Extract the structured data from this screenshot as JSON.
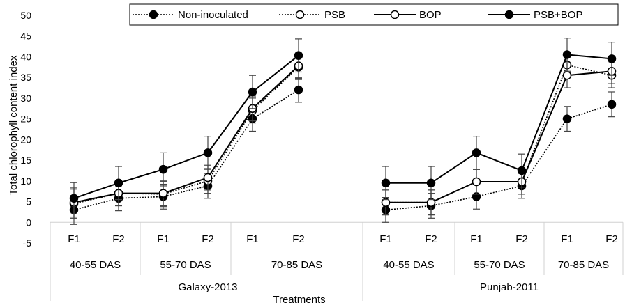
{
  "chart_data": {
    "type": "line",
    "ylabel": "Total chlorophyll content index",
    "xlabel": "Treatments",
    "ylim": [
      -5,
      50
    ],
    "yticks": [
      -5,
      0,
      5,
      10,
      15,
      20,
      25,
      30,
      35,
      40,
      45,
      50
    ],
    "grid": false,
    "legend_position": "top-right",
    "panels": [
      {
        "name": "Galaxy-2013",
        "groups": [
          "40-55 DAS",
          "55-70 DAS",
          "70-85 DAS"
        ],
        "categories": [
          "F1",
          "F2",
          "F1",
          "F2",
          "F1",
          "F2"
        ],
        "series": [
          {
            "name": "Non-inoculated",
            "values": [
              3.0,
              5.8,
              6.2,
              8.8,
              25.0,
              32.0
            ],
            "err": [
              3.5,
              3.0,
              3.0,
              3.0,
              3.0,
              3.0
            ]
          },
          {
            "name": "PSB",
            "values": [
              4.5,
              7.0,
              6.8,
              10.0,
              27.0,
              37.5
            ],
            "err": [
              3.5,
              3.0,
              3.0,
              3.0,
              3.0,
              3.0
            ]
          },
          {
            "name": "BOP",
            "values": [
              4.8,
              7.0,
              7.0,
              10.8,
              27.5,
              37.8
            ],
            "err": [
              3.5,
              3.0,
              3.0,
              3.0,
              3.0,
              3.0
            ]
          },
          {
            "name": "PSB+BOP",
            "values": [
              5.8,
              9.5,
              12.8,
              16.8,
              31.5,
              40.3
            ],
            "err": [
              3.8,
              4.0,
              4.0,
              4.0,
              4.0,
              4.0
            ]
          }
        ]
      },
      {
        "name": "Punjab-2011",
        "groups": [
          "40-55 DAS",
          "55-70 DAS",
          "70-85 DAS"
        ],
        "categories": [
          "F1",
          "F2",
          "F1",
          "F2",
          "F1",
          "F2"
        ],
        "series": [
          {
            "name": "Non-inoculated",
            "values": [
              3.0,
              4.0,
              6.2,
              8.8,
              25.0,
              28.5
            ],
            "err": [
              3.0,
              3.0,
              3.0,
              3.0,
              3.0,
              3.0
            ]
          },
          {
            "name": "PSB",
            "values": [
              4.8,
              4.8,
              9.8,
              9.8,
              38.0,
              35.5
            ],
            "err": [
              3.0,
              3.0,
              3.0,
              3.0,
              3.0,
              3.0
            ]
          },
          {
            "name": "BOP",
            "values": [
              4.8,
              4.8,
              9.8,
              9.8,
              35.5,
              36.5
            ],
            "err": [
              3.0,
              3.0,
              3.0,
              3.0,
              3.0,
              3.0
            ]
          },
          {
            "name": "PSB+BOP",
            "values": [
              9.5,
              9.5,
              16.8,
              12.5,
              40.5,
              39.5
            ],
            "err": [
              4.0,
              4.0,
              4.0,
              4.0,
              4.0,
              4.0
            ]
          }
        ]
      }
    ],
    "legend": [
      "Non-inoculated",
      "PSB",
      "BOP",
      "PSB+BOP"
    ],
    "series_styles": [
      {
        "name": "Non-inoculated",
        "line": "dotted",
        "marker": "filled"
      },
      {
        "name": "PSB",
        "line": "dotted",
        "marker": "open"
      },
      {
        "name": "BOP",
        "line": "solid",
        "marker": "open"
      },
      {
        "name": "PSB+BOP",
        "line": "solid",
        "marker": "filled"
      }
    ]
  }
}
